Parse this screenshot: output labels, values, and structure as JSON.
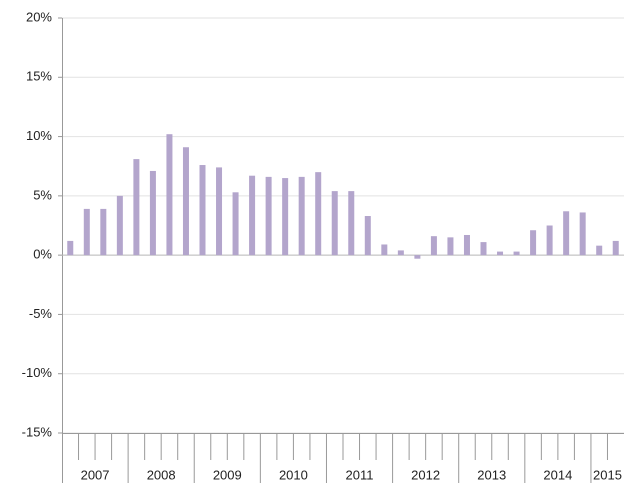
{
  "chart_data": {
    "type": "bar",
    "categories": [
      "2007",
      null,
      null,
      null,
      "2008",
      null,
      null,
      null,
      "2009",
      null,
      null,
      null,
      "2010",
      null,
      null,
      null,
      "2011",
      null,
      null,
      null,
      "2012",
      null,
      null,
      null,
      "2013",
      null,
      null,
      null,
      "2014",
      null,
      null,
      null,
      "2015",
      null
    ],
    "values": [
      1.2,
      3.9,
      3.9,
      5.0,
      8.1,
      7.1,
      10.2,
      9.1,
      7.6,
      7.4,
      5.3,
      6.7,
      6.6,
      6.5,
      6.6,
      7.0,
      5.4,
      5.4,
      3.3,
      0.9,
      0.4,
      -0.3,
      1.6,
      1.5,
      1.7,
      1.1,
      0.3,
      0.3,
      2.1,
      2.5,
      3.7,
      3.6,
      0.8,
      1.2
    ],
    "color": "#b3a5cc",
    "ylim": [
      -15,
      20
    ],
    "yticks": [
      {
        "value": -15,
        "label": "-15%"
      },
      {
        "value": -10,
        "label": "-10%"
      },
      {
        "value": -5,
        "label": "-5%"
      },
      {
        "value": 0,
        "label": "0%"
      },
      {
        "value": 5,
        "label": "5%"
      },
      {
        "value": 10,
        "label": "10%"
      },
      {
        "value": 15,
        "label": "15%"
      },
      {
        "value": 20,
        "label": "20%"
      }
    ],
    "grid": true
  }
}
